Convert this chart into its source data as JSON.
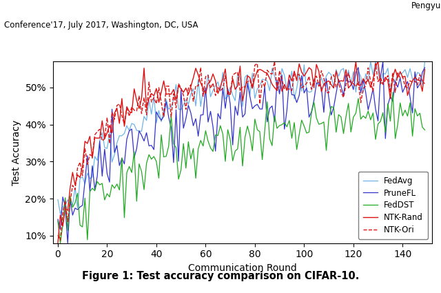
{
  "title_top_right": "Pengyu",
  "title_top_left": "Conference'17, July 2017, Washington, DC, USA",
  "xlabel": "Communication Round",
  "ylabel": "Test Accuracy",
  "caption": "Figure 1: Test accuracy comparison on CIFAR-10.",
  "xlim": [
    -2,
    152
  ],
  "ylim": [
    0.08,
    0.57
  ],
  "yticks": [
    0.1,
    0.2,
    0.3,
    0.4,
    0.5
  ],
  "xticks": [
    0,
    20,
    40,
    60,
    80,
    100,
    120,
    140
  ],
  "legend_entries": [
    "FedAvg",
    "PruneFL",
    "FedDST",
    "NTK-Rand",
    "NTK-Ori"
  ],
  "colors": {
    "FedAvg": "#6eb4e8",
    "PruneFL": "#3333cc",
    "FedDST": "#22aa22",
    "NTK-Rand": "#dd1111",
    "NTK-Ori": "#dd1111"
  },
  "n_rounds": 150
}
